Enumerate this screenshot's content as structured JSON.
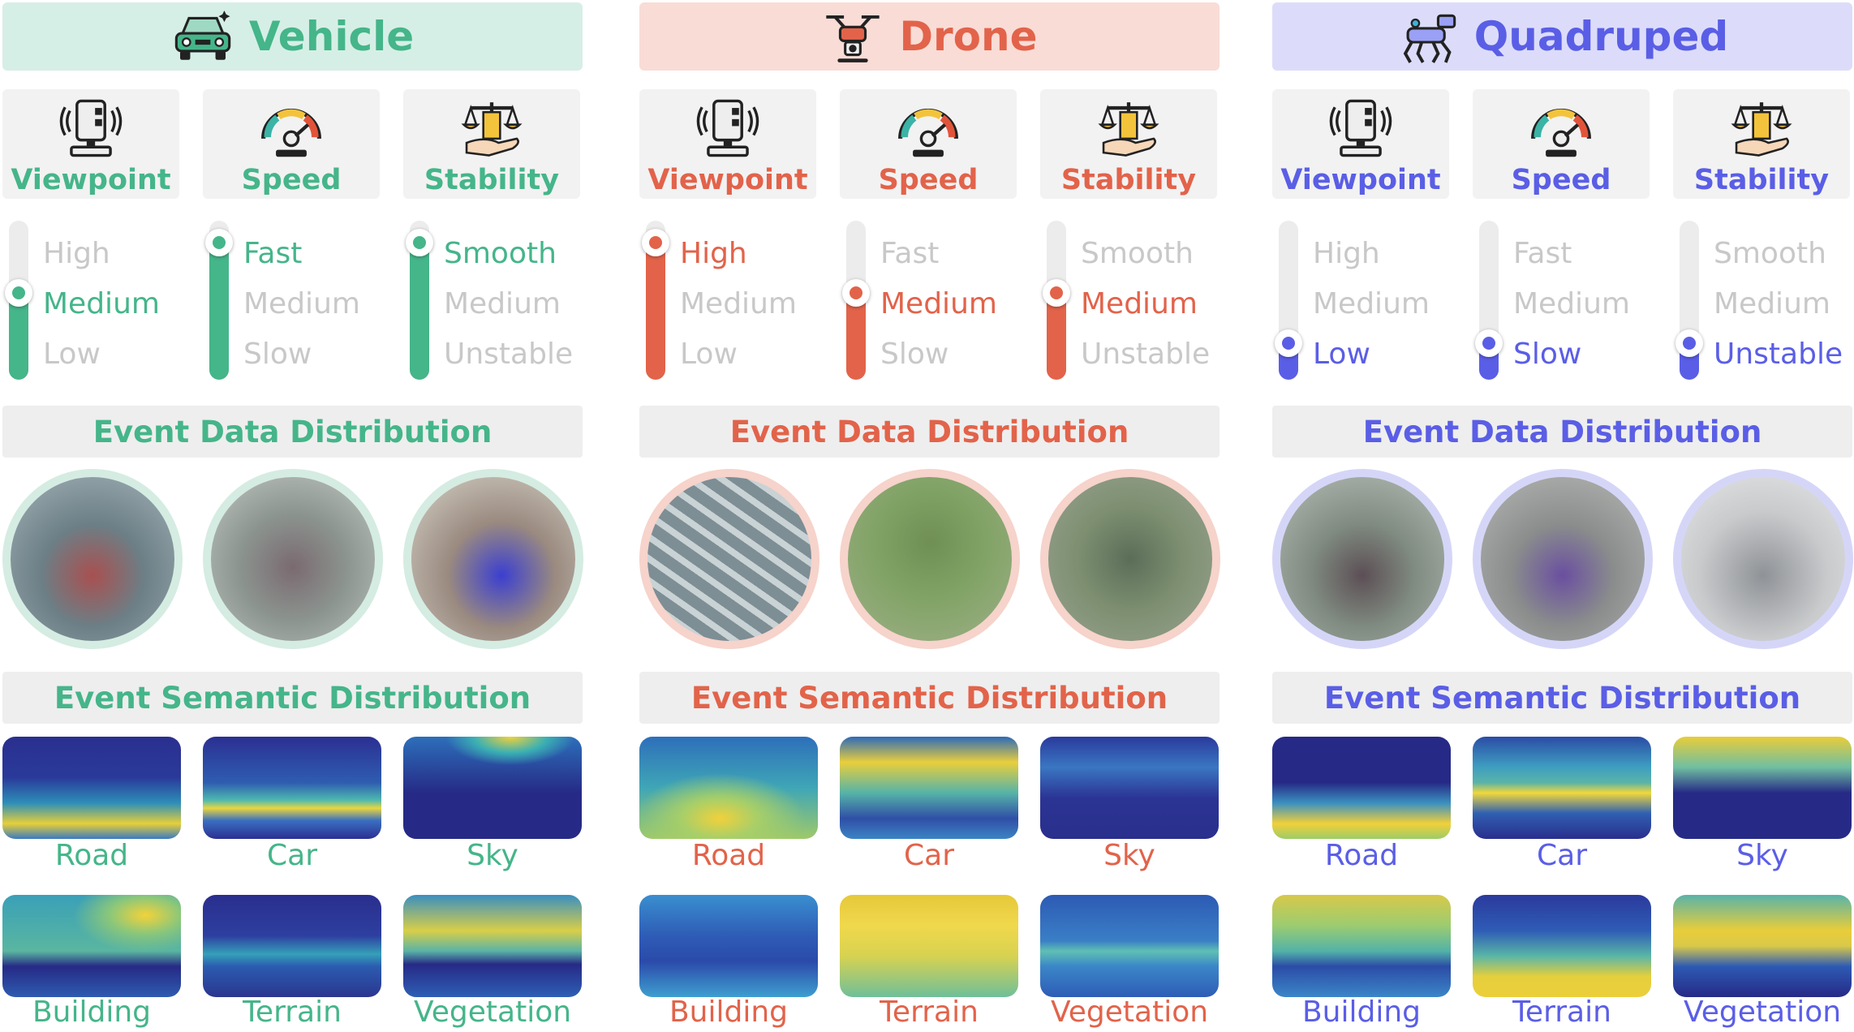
{
  "levels": {
    "viewpoint": [
      "High",
      "Medium",
      "Low"
    ],
    "speed": [
      "Fast",
      "Medium",
      "Slow"
    ],
    "stability": [
      "Smooth",
      "Medium",
      "Unstable"
    ]
  },
  "attributes": [
    "Viewpoint",
    "Speed",
    "Stability"
  ],
  "section_data_title": "Event Data Distribution",
  "section_semantic_title": "Event Semantic Distribution",
  "semantic_classes": [
    "Road",
    "Car",
    "Sky",
    "Building",
    "Terrain",
    "Vegetation"
  ],
  "platforms": [
    {
      "name": "Vehicle",
      "icon": "car-icon",
      "accent": "#45b58a",
      "title_bg": "#d6efe6",
      "light": "#d5ece2",
      "selected": {
        "viewpoint": 1,
        "speed": 0,
        "stability": 0
      }
    },
    {
      "name": "Drone",
      "icon": "drone-icon",
      "accent": "#e2634a",
      "title_bg": "#f9dcd6",
      "light": "#f6d3cb",
      "selected": {
        "viewpoint": 0,
        "speed": 1,
        "stability": 1
      }
    },
    {
      "name": "Quadruped",
      "icon": "robot-dog-icon",
      "accent": "#5a5ee6",
      "title_bg": "#dcdcfa",
      "light": "#d5d6f7",
      "selected": {
        "viewpoint": 2,
        "speed": 2,
        "stability": 2
      }
    }
  ]
}
